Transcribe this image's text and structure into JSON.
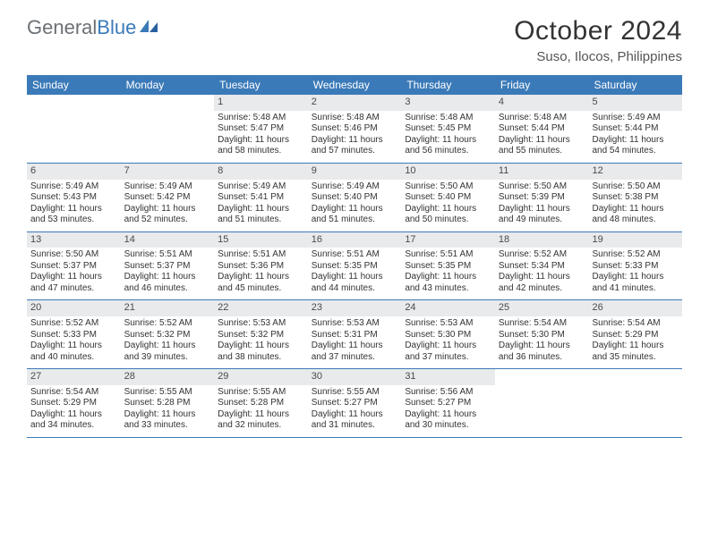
{
  "logo": {
    "text_left": "General",
    "text_right": "Blue"
  },
  "title": {
    "month": "October 2024",
    "location": "Suso, Ilocos, Philippines"
  },
  "colors": {
    "header_bg": "#3b7ab8",
    "header_text": "#ffffff",
    "daynum_bg": "#e8eaec",
    "text": "#333333",
    "logo_gray": "#6b7075",
    "logo_blue": "#3b7ab8",
    "week_border": "#3b7ab8"
  },
  "weekdays": [
    "Sunday",
    "Monday",
    "Tuesday",
    "Wednesday",
    "Thursday",
    "Friday",
    "Saturday"
  ],
  "weeks": [
    [
      {
        "num": "",
        "sunrise": "",
        "sunset": "",
        "daylight": ""
      },
      {
        "num": "",
        "sunrise": "",
        "sunset": "",
        "daylight": ""
      },
      {
        "num": "1",
        "sunrise": "Sunrise: 5:48 AM",
        "sunset": "Sunset: 5:47 PM",
        "daylight": "Daylight: 11 hours and 58 minutes."
      },
      {
        "num": "2",
        "sunrise": "Sunrise: 5:48 AM",
        "sunset": "Sunset: 5:46 PM",
        "daylight": "Daylight: 11 hours and 57 minutes."
      },
      {
        "num": "3",
        "sunrise": "Sunrise: 5:48 AM",
        "sunset": "Sunset: 5:45 PM",
        "daylight": "Daylight: 11 hours and 56 minutes."
      },
      {
        "num": "4",
        "sunrise": "Sunrise: 5:48 AM",
        "sunset": "Sunset: 5:44 PM",
        "daylight": "Daylight: 11 hours and 55 minutes."
      },
      {
        "num": "5",
        "sunrise": "Sunrise: 5:49 AM",
        "sunset": "Sunset: 5:44 PM",
        "daylight": "Daylight: 11 hours and 54 minutes."
      }
    ],
    [
      {
        "num": "6",
        "sunrise": "Sunrise: 5:49 AM",
        "sunset": "Sunset: 5:43 PM",
        "daylight": "Daylight: 11 hours and 53 minutes."
      },
      {
        "num": "7",
        "sunrise": "Sunrise: 5:49 AM",
        "sunset": "Sunset: 5:42 PM",
        "daylight": "Daylight: 11 hours and 52 minutes."
      },
      {
        "num": "8",
        "sunrise": "Sunrise: 5:49 AM",
        "sunset": "Sunset: 5:41 PM",
        "daylight": "Daylight: 11 hours and 51 minutes."
      },
      {
        "num": "9",
        "sunrise": "Sunrise: 5:49 AM",
        "sunset": "Sunset: 5:40 PM",
        "daylight": "Daylight: 11 hours and 51 minutes."
      },
      {
        "num": "10",
        "sunrise": "Sunrise: 5:50 AM",
        "sunset": "Sunset: 5:40 PM",
        "daylight": "Daylight: 11 hours and 50 minutes."
      },
      {
        "num": "11",
        "sunrise": "Sunrise: 5:50 AM",
        "sunset": "Sunset: 5:39 PM",
        "daylight": "Daylight: 11 hours and 49 minutes."
      },
      {
        "num": "12",
        "sunrise": "Sunrise: 5:50 AM",
        "sunset": "Sunset: 5:38 PM",
        "daylight": "Daylight: 11 hours and 48 minutes."
      }
    ],
    [
      {
        "num": "13",
        "sunrise": "Sunrise: 5:50 AM",
        "sunset": "Sunset: 5:37 PM",
        "daylight": "Daylight: 11 hours and 47 minutes."
      },
      {
        "num": "14",
        "sunrise": "Sunrise: 5:51 AM",
        "sunset": "Sunset: 5:37 PM",
        "daylight": "Daylight: 11 hours and 46 minutes."
      },
      {
        "num": "15",
        "sunrise": "Sunrise: 5:51 AM",
        "sunset": "Sunset: 5:36 PM",
        "daylight": "Daylight: 11 hours and 45 minutes."
      },
      {
        "num": "16",
        "sunrise": "Sunrise: 5:51 AM",
        "sunset": "Sunset: 5:35 PM",
        "daylight": "Daylight: 11 hours and 44 minutes."
      },
      {
        "num": "17",
        "sunrise": "Sunrise: 5:51 AM",
        "sunset": "Sunset: 5:35 PM",
        "daylight": "Daylight: 11 hours and 43 minutes."
      },
      {
        "num": "18",
        "sunrise": "Sunrise: 5:52 AM",
        "sunset": "Sunset: 5:34 PM",
        "daylight": "Daylight: 11 hours and 42 minutes."
      },
      {
        "num": "19",
        "sunrise": "Sunrise: 5:52 AM",
        "sunset": "Sunset: 5:33 PM",
        "daylight": "Daylight: 11 hours and 41 minutes."
      }
    ],
    [
      {
        "num": "20",
        "sunrise": "Sunrise: 5:52 AM",
        "sunset": "Sunset: 5:33 PM",
        "daylight": "Daylight: 11 hours and 40 minutes."
      },
      {
        "num": "21",
        "sunrise": "Sunrise: 5:52 AM",
        "sunset": "Sunset: 5:32 PM",
        "daylight": "Daylight: 11 hours and 39 minutes."
      },
      {
        "num": "22",
        "sunrise": "Sunrise: 5:53 AM",
        "sunset": "Sunset: 5:32 PM",
        "daylight": "Daylight: 11 hours and 38 minutes."
      },
      {
        "num": "23",
        "sunrise": "Sunrise: 5:53 AM",
        "sunset": "Sunset: 5:31 PM",
        "daylight": "Daylight: 11 hours and 37 minutes."
      },
      {
        "num": "24",
        "sunrise": "Sunrise: 5:53 AM",
        "sunset": "Sunset: 5:30 PM",
        "daylight": "Daylight: 11 hours and 37 minutes."
      },
      {
        "num": "25",
        "sunrise": "Sunrise: 5:54 AM",
        "sunset": "Sunset: 5:30 PM",
        "daylight": "Daylight: 11 hours and 36 minutes."
      },
      {
        "num": "26",
        "sunrise": "Sunrise: 5:54 AM",
        "sunset": "Sunset: 5:29 PM",
        "daylight": "Daylight: 11 hours and 35 minutes."
      }
    ],
    [
      {
        "num": "27",
        "sunrise": "Sunrise: 5:54 AM",
        "sunset": "Sunset: 5:29 PM",
        "daylight": "Daylight: 11 hours and 34 minutes."
      },
      {
        "num": "28",
        "sunrise": "Sunrise: 5:55 AM",
        "sunset": "Sunset: 5:28 PM",
        "daylight": "Daylight: 11 hours and 33 minutes."
      },
      {
        "num": "29",
        "sunrise": "Sunrise: 5:55 AM",
        "sunset": "Sunset: 5:28 PM",
        "daylight": "Daylight: 11 hours and 32 minutes."
      },
      {
        "num": "30",
        "sunrise": "Sunrise: 5:55 AM",
        "sunset": "Sunset: 5:27 PM",
        "daylight": "Daylight: 11 hours and 31 minutes."
      },
      {
        "num": "31",
        "sunrise": "Sunrise: 5:56 AM",
        "sunset": "Sunset: 5:27 PM",
        "daylight": "Daylight: 11 hours and 30 minutes."
      },
      {
        "num": "",
        "sunrise": "",
        "sunset": "",
        "daylight": ""
      },
      {
        "num": "",
        "sunrise": "",
        "sunset": "",
        "daylight": ""
      }
    ]
  ]
}
